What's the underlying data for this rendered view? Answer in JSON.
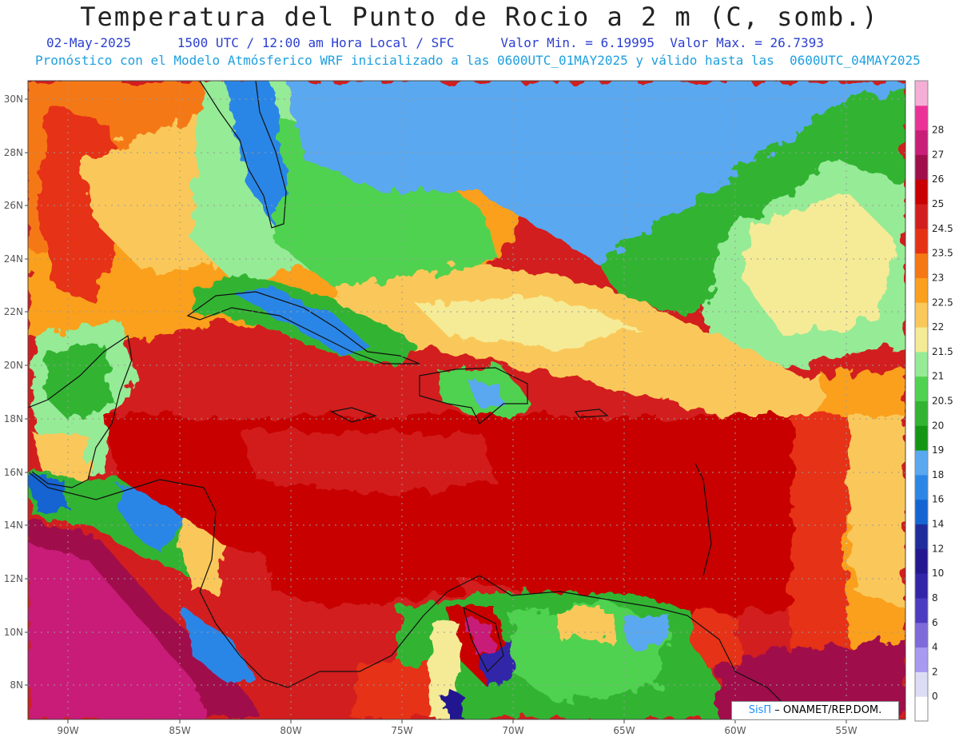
{
  "header": {
    "title": "Temperatura del Punto de Rocio a 2 m (C, somb.)",
    "date": "02-May-2025",
    "time": "1500 UTC / 12:00 am Hora Local / SFC",
    "valmin": "Valor Min. = 6.19995",
    "valmax": "Valor Max. = 26.7393",
    "forecast": "Pronóstico con el Modelo Atmósferico WRF inicializado a las 0600UTC_01MAY2025 y válido hasta las  0600UTC_04MAY2025"
  },
  "axes": {
    "lat_labels": [
      "30N",
      "28N",
      "26N",
      "24N",
      "22N",
      "20N",
      "18N",
      "16N",
      "14N",
      "12N",
      "10N",
      "8N"
    ],
    "lon_labels": [
      "90W",
      "85W",
      "80W",
      "75W",
      "70W",
      "65W",
      "60W",
      "55W"
    ]
  },
  "colorbar": {
    "levels": [
      "0",
      "2",
      "4",
      "6",
      "8",
      "10",
      "12",
      "14",
      "16",
      "18",
      "19",
      "20",
      "20.5",
      "21",
      "21.5",
      "22",
      "22.5",
      "23",
      "23.5",
      "24.5",
      "25",
      "26",
      "27",
      "28"
    ],
    "colors": [
      "#ffffff",
      "#dcdcf5",
      "#a79af0",
      "#7e6ad8",
      "#4b3cc0",
      "#3225a8",
      "#231890",
      "#1e2d9b",
      "#1464d2",
      "#2c86e6",
      "#5aa8f0",
      "#149614",
      "#32b432",
      "#50d250",
      "#96eb96",
      "#f5eb96",
      "#fac85a",
      "#faa01e",
      "#f57814",
      "#e63214",
      "#d21e1e",
      "#c80000",
      "#a00f4b",
      "#c81e78",
      "#eb3296",
      "#f5afd7"
    ]
  },
  "map_colors": {
    "ocean_blue": "#5aa8f0",
    "dark_blue": "#2c6fe0",
    "green": "#32b432",
    "light_green": "#96eb96",
    "yellow": "#f5eb96",
    "orange": "#faa01e",
    "red": "#d21e1e",
    "dark_red": "#c80000",
    "magenta": "#a00f4b"
  },
  "credit": {
    "brand": "SisΠ",
    "text": " – ONAMET/REP.DOM."
  }
}
